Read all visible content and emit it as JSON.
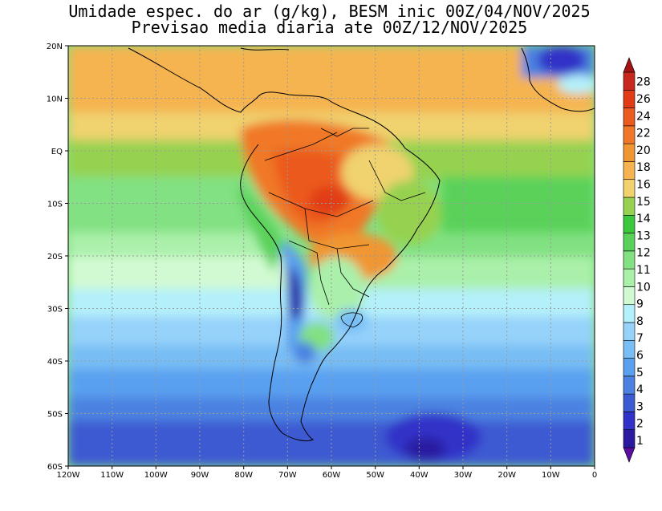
{
  "title": {
    "line1": "Umidade espec. do ar (g/kg), BESM inic 00Z/04/NOV/2025",
    "line2": "Previsao media diaria ate 00Z/12/NOV/2025"
  },
  "map": {
    "lon_labels": [
      "120W",
      "110W",
      "100W",
      "90W",
      "80W",
      "70W",
      "60W",
      "50W",
      "40W",
      "30W",
      "20W",
      "10W",
      "0"
    ],
    "lat_labels": [
      "20N",
      "10N",
      "EQ",
      "10S",
      "20S",
      "30S",
      "40S",
      "50S",
      "60S"
    ],
    "lon_range": [
      -120,
      0
    ],
    "lat_range": [
      -60,
      20
    ],
    "grid": true
  },
  "colorbar": {
    "levels": [
      "1",
      "2",
      "3",
      "4",
      "5",
      "6",
      "7",
      "8",
      "9",
      "10",
      "11",
      "12",
      "13",
      "14",
      "15",
      "16",
      "18",
      "20",
      "22",
      "24",
      "26",
      "28"
    ],
    "colors": [
      "#5a0fa0",
      "#2a1aa0",
      "#3232c8",
      "#3c5ad2",
      "#4b82e1",
      "#5aa0f0",
      "#78bef5",
      "#96d2fa",
      "#b4f0fa",
      "#d2fad2",
      "#aaf0aa",
      "#82e182",
      "#5ad25a",
      "#3cc83c",
      "#96d250",
      "#f0d26e",
      "#f5b450",
      "#f09632",
      "#f07828",
      "#eb5a1e",
      "#e13c14",
      "#c8281e",
      "#a01414"
    ]
  }
}
